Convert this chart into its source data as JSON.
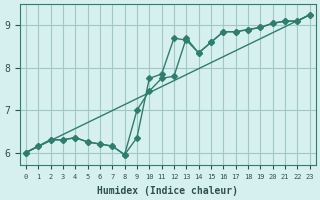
{
  "xlabel": "Humidex (Indice chaleur)",
  "ylabel": "",
  "bg_color": "#d6f0f0",
  "grid_color": "#a0c8c8",
  "line_color": "#2e7d6e",
  "xlim": [
    -0.5,
    23.5
  ],
  "ylim": [
    5.7,
    9.5
  ],
  "yticks": [
    6,
    7,
    8,
    9
  ],
  "xticks": [
    0,
    1,
    2,
    3,
    4,
    5,
    6,
    7,
    8,
    9,
    10,
    11,
    12,
    13,
    14,
    15,
    16,
    17,
    18,
    19,
    20,
    21,
    22,
    23
  ],
  "line1_x": [
    0,
    1,
    2,
    3,
    4,
    5,
    6,
    7,
    8,
    9,
    10,
    11,
    12,
    13,
    14,
    15,
    16,
    17,
    18,
    19,
    20,
    21,
    22,
    23
  ],
  "line1_y": [
    6.0,
    6.15,
    6.3,
    6.3,
    6.35,
    6.25,
    6.2,
    6.15,
    5.95,
    6.35,
    7.75,
    7.85,
    8.7,
    8.65,
    8.35,
    8.6,
    8.85,
    8.85,
    8.9,
    8.95,
    9.05,
    9.1,
    9.1,
    9.25
  ],
  "line2_x": [
    0,
    1,
    2,
    3,
    4,
    5,
    6,
    7,
    8,
    9,
    10,
    11,
    12,
    13,
    14,
    15,
    16,
    17,
    18,
    19,
    20,
    21,
    22,
    23
  ],
  "line2_y": [
    6.0,
    6.15,
    6.3,
    6.3,
    6.35,
    6.25,
    6.2,
    6.15,
    5.95,
    7.0,
    7.45,
    7.75,
    7.8,
    8.7,
    8.35,
    8.6,
    8.85,
    8.85,
    8.9,
    8.95,
    9.05,
    9.1,
    9.1,
    9.25
  ],
  "line3_x": [
    0,
    23
  ],
  "line3_y": [
    6.0,
    9.25
  ]
}
